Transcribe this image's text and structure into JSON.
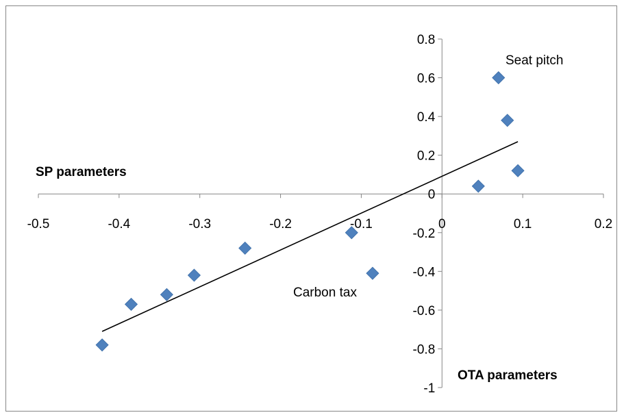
{
  "chart_data": {
    "type": "scatter",
    "title": "",
    "xlabel": "OTA parameters",
    "ylabel": "SP parameters",
    "xlim": [
      -0.5,
      0.2
    ],
    "ylim": [
      -1,
      0.8
    ],
    "x_ticks": [
      "-0.5",
      "-0.4",
      "-0.3",
      "-0.2",
      "-0.1",
      "0",
      "0.1",
      "0.2"
    ],
    "y_ticks": [
      "0.8",
      "0.6",
      "0.4",
      "0.2",
      "0",
      "-0.2",
      "-0.4",
      "-0.6",
      "-0.8",
      "-1"
    ],
    "series": [
      {
        "color": "#4f81bd",
        "marker": "diamond",
        "points": [
          {
            "x": -0.421,
            "y": -0.78
          },
          {
            "x": -0.385,
            "y": -0.57
          },
          {
            "x": -0.341,
            "y": -0.52
          },
          {
            "x": -0.307,
            "y": -0.42
          },
          {
            "x": -0.244,
            "y": -0.28
          },
          {
            "x": -0.112,
            "y": -0.2
          },
          {
            "x": -0.086,
            "y": -0.41
          },
          {
            "x": 0.045,
            "y": 0.04
          },
          {
            "x": 0.07,
            "y": 0.6
          },
          {
            "x": 0.081,
            "y": 0.38
          },
          {
            "x": 0.094,
            "y": 0.12
          }
        ]
      }
    ],
    "trendline": {
      "type": "linear",
      "x_start": -0.421,
      "y_start": -0.71,
      "x_end": 0.094,
      "y_end": 0.27,
      "color": "#000000"
    },
    "annotations": [
      {
        "text": "Seat pitch",
        "x": 0.07,
        "y": 0.6
      },
      {
        "text": "Carbon tax",
        "x": -0.086,
        "y": -0.41
      }
    ],
    "grid": false,
    "legend": "none"
  }
}
